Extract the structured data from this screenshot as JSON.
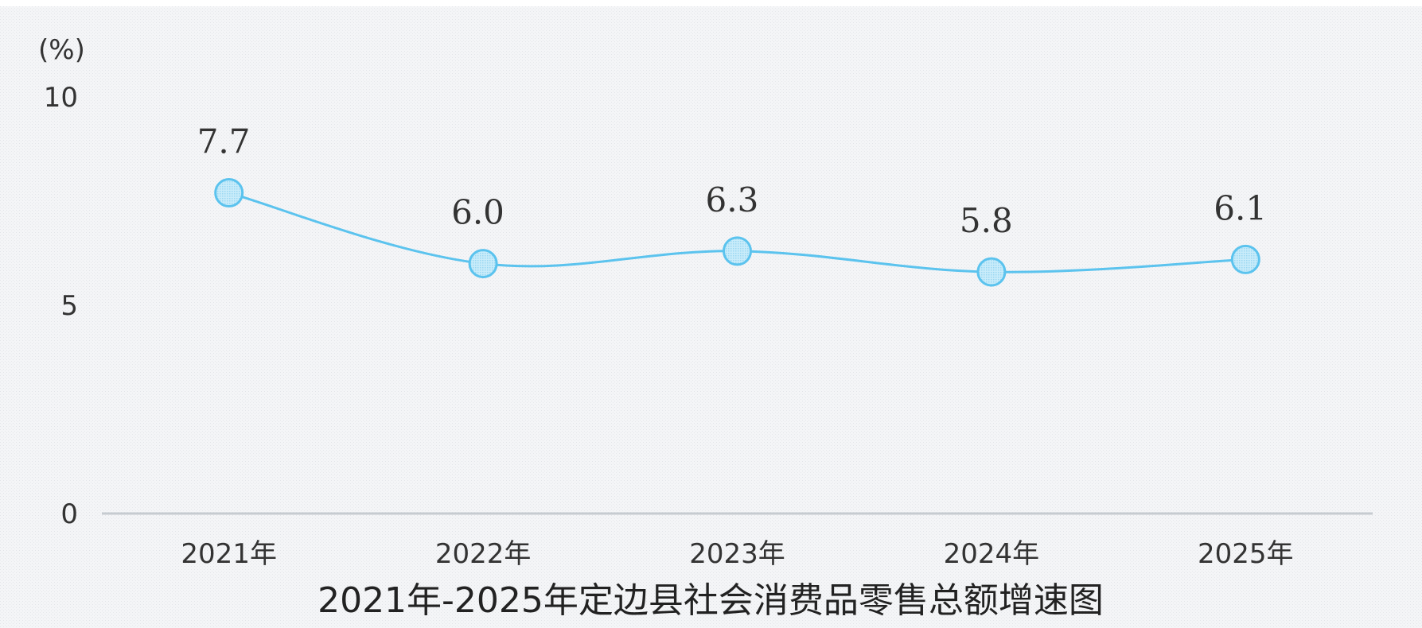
{
  "chart_data": {
    "type": "line",
    "title": "2021年-2025年定边县社会消费品零售总额增速图",
    "unit_label": "(%)",
    "categories": [
      "2021年",
      "2022年",
      "2023年",
      "2024年",
      "2025年"
    ],
    "series": [
      {
        "values": [
          7.7,
          6.0,
          6.3,
          5.8,
          6.1
        ],
        "value_labels": [
          "7.7",
          "6.0",
          "6.3",
          "5.8",
          "6.1"
        ]
      }
    ],
    "ylim": [
      0,
      10
    ],
    "yticks": [
      {
        "value": 0,
        "label": "0"
      },
      {
        "value": 5,
        "label": "5"
      },
      {
        "value": 10,
        "label": "10"
      }
    ],
    "grid": false,
    "smooth": true,
    "colors": {
      "line": "#5bc3ee",
      "marker_fill": "#bfe6f7",
      "marker_stroke": "#5bc3ee",
      "axis": "#c6cbd0",
      "background": "#f3f4f6"
    }
  }
}
